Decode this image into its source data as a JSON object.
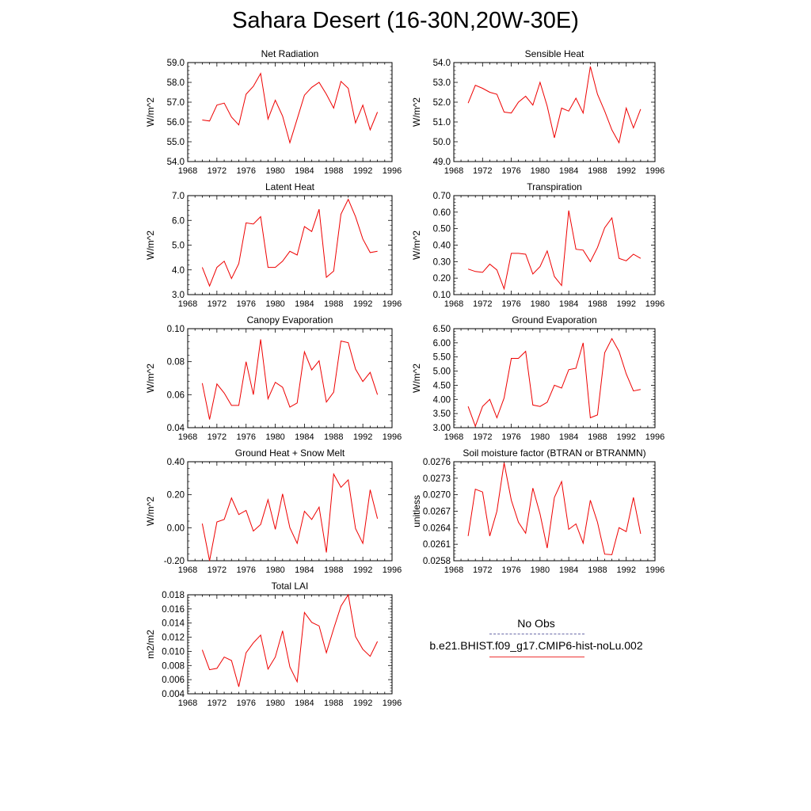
{
  "page": {
    "title": "Sahara Desert (16-30N,20W-30E)"
  },
  "legend": {
    "obs_label": "No Obs",
    "model_label": "b.e21.BHIST.f09_g17.CMIP6-hist-noLu.002",
    "obs_color": "#6a6aa8",
    "model_color": "#ee0000"
  },
  "chart_data": [
    {
      "type": "line",
      "title": "Net Radiation",
      "ylabel": "W/m^2",
      "xlim": [
        1968,
        1996
      ],
      "ylim": [
        54.0,
        59.0
      ],
      "x_ticks": [
        "1968",
        "1972",
        "1976",
        "1980",
        "1984",
        "1988",
        "1992",
        "1996"
      ],
      "y_ticks": [
        "54.0",
        "55.0",
        "56.0",
        "57.0",
        "58.0",
        "59.0"
      ],
      "series": [
        {
          "x": [
            1970,
            1971,
            1972,
            1973,
            1974,
            1975,
            1976,
            1977,
            1978,
            1979,
            1980,
            1981,
            1982,
            1983,
            1984,
            1985,
            1986,
            1987,
            1988,
            1989,
            1990,
            1991,
            1992,
            1993,
            1994
          ],
          "values": [
            56.1,
            56.05,
            56.85,
            56.95,
            56.25,
            55.85,
            57.4,
            57.8,
            58.45,
            56.15,
            57.1,
            56.3,
            54.95,
            56.15,
            57.35,
            57.75,
            58.0,
            57.4,
            56.7,
            58.05,
            57.7,
            55.95,
            56.85,
            55.6,
            56.5
          ]
        }
      ]
    },
    {
      "type": "line",
      "title": "Sensible Heat",
      "ylabel": "W/m^2",
      "xlim": [
        1968,
        1996
      ],
      "ylim": [
        49.0,
        54.0
      ],
      "x_ticks": [
        "1968",
        "1972",
        "1976",
        "1980",
        "1984",
        "1988",
        "1992",
        "1996"
      ],
      "y_ticks": [
        "49.0",
        "50.0",
        "51.0",
        "52.0",
        "53.0",
        "54.0"
      ],
      "series": [
        {
          "x": [
            1970,
            1971,
            1972,
            1973,
            1974,
            1975,
            1976,
            1977,
            1978,
            1979,
            1980,
            1981,
            1982,
            1983,
            1984,
            1985,
            1986,
            1987,
            1988,
            1989,
            1990,
            1991,
            1992,
            1993,
            1994
          ],
          "values": [
            51.95,
            52.85,
            52.7,
            52.5,
            52.4,
            51.5,
            51.45,
            52.0,
            52.3,
            51.85,
            53.0,
            51.8,
            50.2,
            51.7,
            51.55,
            52.2,
            51.45,
            53.8,
            52.4,
            51.55,
            50.6,
            49.95,
            51.7,
            50.7,
            51.65
          ]
        }
      ]
    },
    {
      "type": "line",
      "title": "Latent Heat",
      "ylabel": "W/m^2",
      "xlim": [
        1968,
        1996
      ],
      "ylim": [
        3.0,
        7.0
      ],
      "x_ticks": [
        "1968",
        "1972",
        "1976",
        "1980",
        "1984",
        "1988",
        "1992",
        "1996"
      ],
      "y_ticks": [
        "3.0",
        "4.0",
        "5.0",
        "6.0",
        "7.0"
      ],
      "series": [
        {
          "x": [
            1970,
            1971,
            1972,
            1973,
            1974,
            1975,
            1976,
            1977,
            1978,
            1979,
            1980,
            1981,
            1982,
            1983,
            1984,
            1985,
            1986,
            1987,
            1988,
            1989,
            1990,
            1991,
            1992,
            1993,
            1994
          ],
          "values": [
            4.1,
            3.35,
            4.1,
            4.35,
            3.65,
            4.25,
            5.9,
            5.85,
            6.15,
            4.1,
            4.1,
            4.35,
            4.75,
            4.6,
            5.75,
            5.55,
            6.45,
            3.7,
            3.95,
            6.25,
            6.85,
            6.15,
            5.25,
            4.7,
            4.75
          ]
        }
      ]
    },
    {
      "type": "line",
      "title": "Transpiration",
      "ylabel": "W/m^2",
      "xlim": [
        1968,
        1996
      ],
      "ylim": [
        0.1,
        0.7
      ],
      "x_ticks": [
        "1968",
        "1972",
        "1976",
        "1980",
        "1984",
        "1988",
        "1992",
        "1996"
      ],
      "y_ticks": [
        "0.10",
        "0.20",
        "0.30",
        "0.40",
        "0.50",
        "0.60",
        "0.70"
      ],
      "series": [
        {
          "x": [
            1970,
            1971,
            1972,
            1973,
            1974,
            1975,
            1976,
            1977,
            1978,
            1979,
            1980,
            1981,
            1982,
            1983,
            1984,
            1985,
            1986,
            1987,
            1988,
            1989,
            1990,
            1991,
            1992,
            1993,
            1994
          ],
          "values": [
            0.255,
            0.24,
            0.235,
            0.285,
            0.25,
            0.135,
            0.35,
            0.35,
            0.345,
            0.225,
            0.27,
            0.365,
            0.21,
            0.155,
            0.61,
            0.375,
            0.37,
            0.3,
            0.385,
            0.505,
            0.565,
            0.32,
            0.305,
            0.345,
            0.32
          ]
        }
      ]
    },
    {
      "type": "line",
      "title": "Canopy Evaporation",
      "ylabel": "W/m^2",
      "xlim": [
        1968,
        1996
      ],
      "ylim": [
        0.04,
        0.1
      ],
      "x_ticks": [
        "1968",
        "1972",
        "1976",
        "1980",
        "1984",
        "1988",
        "1992",
        "1996"
      ],
      "y_ticks": [
        "0.04",
        "0.06",
        "0.08",
        "0.10"
      ],
      "series": [
        {
          "x": [
            1970,
            1971,
            1972,
            1973,
            1974,
            1975,
            1976,
            1977,
            1978,
            1979,
            1980,
            1981,
            1982,
            1983,
            1984,
            1985,
            1986,
            1987,
            1988,
            1989,
            1990,
            1991,
            1992,
            1993,
            1994
          ],
          "values": [
            0.067,
            0.045,
            0.0665,
            0.061,
            0.0535,
            0.0535,
            0.08,
            0.06,
            0.0935,
            0.0575,
            0.0675,
            0.0645,
            0.0525,
            0.055,
            0.086,
            0.075,
            0.0805,
            0.0555,
            0.0615,
            0.0925,
            0.0915,
            0.0755,
            0.068,
            0.0735,
            0.06
          ]
        }
      ]
    },
    {
      "type": "line",
      "title": "Ground Evaporation",
      "ylabel": "W/m^2",
      "xlim": [
        1968,
        1996
      ],
      "ylim": [
        3.0,
        6.5
      ],
      "x_ticks": [
        "1968",
        "1972",
        "1976",
        "1980",
        "1984",
        "1988",
        "1992",
        "1996"
      ],
      "y_ticks": [
        "3.00",
        "3.50",
        "4.00",
        "4.50",
        "5.00",
        "5.50",
        "6.00",
        "6.50"
      ],
      "series": [
        {
          "x": [
            1970,
            1971,
            1972,
            1973,
            1974,
            1975,
            1976,
            1977,
            1978,
            1979,
            1980,
            1981,
            1982,
            1983,
            1984,
            1985,
            1986,
            1987,
            1988,
            1989,
            1990,
            1991,
            1992,
            1993,
            1994
          ],
          "values": [
            3.75,
            3.05,
            3.75,
            4.0,
            3.35,
            4.05,
            5.45,
            5.45,
            5.7,
            3.8,
            3.75,
            3.9,
            4.5,
            4.4,
            5.05,
            5.1,
            6.0,
            3.35,
            3.45,
            5.65,
            6.15,
            5.7,
            4.9,
            4.3,
            4.35
          ]
        }
      ]
    },
    {
      "type": "line",
      "title": "Ground Heat + Snow Melt",
      "ylabel": "W/m^2",
      "xlim": [
        1968,
        1996
      ],
      "ylim": [
        -0.2,
        0.4
      ],
      "x_ticks": [
        "1968",
        "1972",
        "1976",
        "1980",
        "1984",
        "1988",
        "1992",
        "1996"
      ],
      "y_ticks": [
        "-0.20",
        "0.00",
        "0.20",
        "0.40"
      ],
      "series": [
        {
          "x": [
            1970,
            1971,
            1972,
            1973,
            1974,
            1975,
            1976,
            1977,
            1978,
            1979,
            1980,
            1981,
            1982,
            1983,
            1984,
            1985,
            1986,
            1987,
            1988,
            1989,
            1990,
            1991,
            1992,
            1993,
            1994
          ],
          "values": [
            0.025,
            -0.2,
            0.035,
            0.05,
            0.18,
            0.08,
            0.105,
            -0.02,
            0.02,
            0.17,
            -0.01,
            0.205,
            0.0,
            -0.095,
            0.1,
            0.05,
            0.125,
            -0.15,
            0.325,
            0.245,
            0.29,
            -0.005,
            -0.095,
            0.23,
            0.055
          ]
        }
      ]
    },
    {
      "type": "line",
      "title": "Soil moisture factor (BTRAN or BTRANMN)",
      "ylabel": "unitless",
      "xlim": [
        1968,
        1996
      ],
      "ylim": [
        0.0258,
        0.0276
      ],
      "x_ticks": [
        "1968",
        "1972",
        "1976",
        "1980",
        "1984",
        "1988",
        "1992",
        "1996"
      ],
      "y_ticks": [
        "0.0258",
        "0.0261",
        "0.0264",
        "0.0267",
        "0.0270",
        "0.0273",
        "0.0276"
      ],
      "series": [
        {
          "x": [
            1970,
            1971,
            1972,
            1973,
            1974,
            1975,
            1976,
            1977,
            1978,
            1979,
            1980,
            1981,
            1982,
            1983,
            1984,
            1985,
            1986,
            1987,
            1988,
            1989,
            1990,
            1991,
            1992,
            1993,
            1994
          ],
          "values": [
            0.02625,
            0.0271,
            0.02705,
            0.02625,
            0.0267,
            0.02758,
            0.0269,
            0.0265,
            0.0263,
            0.02712,
            0.02665,
            0.02603,
            0.02695,
            0.02724,
            0.02637,
            0.02647,
            0.02612,
            0.0269,
            0.0265,
            0.02592,
            0.02591,
            0.0264,
            0.02633,
            0.02695,
            0.02629
          ]
        }
      ]
    },
    {
      "type": "line",
      "title": "Total LAI",
      "ylabel": "m2/m2",
      "xlim": [
        1968,
        1996
      ],
      "ylim": [
        0.004,
        0.018
      ],
      "x_ticks": [
        "1968",
        "1972",
        "1976",
        "1980",
        "1984",
        "1988",
        "1992",
        "1996"
      ],
      "y_ticks": [
        "0.004",
        "0.006",
        "0.008",
        "0.010",
        "0.012",
        "0.014",
        "0.016",
        "0.018"
      ],
      "series": [
        {
          "x": [
            1970,
            1971,
            1972,
            1973,
            1974,
            1975,
            1976,
            1977,
            1978,
            1979,
            1980,
            1981,
            1982,
            1983,
            1984,
            1985,
            1986,
            1987,
            1988,
            1989,
            1990,
            1991,
            1992,
            1993,
            1994
          ],
          "values": [
            0.0102,
            0.0074,
            0.0076,
            0.0092,
            0.0087,
            0.005,
            0.0098,
            0.0112,
            0.0123,
            0.0075,
            0.0092,
            0.0129,
            0.0078,
            0.0057,
            0.0155,
            0.0141,
            0.0136,
            0.0098,
            0.0132,
            0.0164,
            0.018,
            0.0121,
            0.0103,
            0.0093,
            0.0114
          ]
        }
      ]
    }
  ]
}
